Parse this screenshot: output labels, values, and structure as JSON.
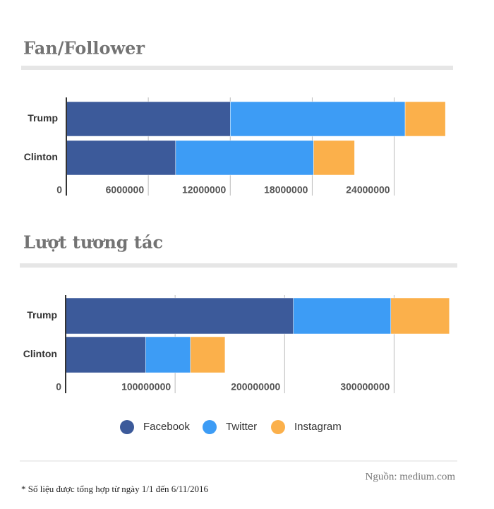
{
  "chart_data": [
    {
      "type": "bar",
      "orientation": "horizontal",
      "stacked": true,
      "title": "Fan/Follower",
      "categories": [
        "Trump",
        "Clinton"
      ],
      "series": [
        {
          "name": "Facebook",
          "color": "#3c5a9a",
          "values": [
            12000000,
            8000000
          ]
        },
        {
          "name": "Twitter",
          "color": "#3d9cf5",
          "values": [
            12800000,
            10100000
          ]
        },
        {
          "name": "Instagram",
          "color": "#fbb04b",
          "values": [
            2950000,
            3000000
          ]
        }
      ],
      "xlim": [
        0,
        28000000
      ],
      "xticks": [
        0,
        6000000,
        12000000,
        18000000,
        24000000
      ],
      "grid": true
    },
    {
      "type": "bar",
      "orientation": "horizontal",
      "stacked": true,
      "title": "Lượt tương tác",
      "categories": [
        "Trump",
        "Clinton"
      ],
      "series": [
        {
          "name": "Facebook",
          "color": "#3c5a9a",
          "values": [
            208000000,
            73000000
          ]
        },
        {
          "name": "Twitter",
          "color": "#3d9cf5",
          "values": [
            89000000,
            41000000
          ]
        },
        {
          "name": "Instagram",
          "color": "#fbb04b",
          "values": [
            53500000,
            31600000
          ]
        }
      ],
      "xlim": [
        0,
        350000000
      ],
      "xticks": [
        0,
        100000000,
        200000000,
        300000000
      ],
      "grid": true
    }
  ],
  "source": "Nguồn: medium.com",
  "note": "* Số liệu được tổng hợp từ ngày 1/1 đến 6/11/2016"
}
